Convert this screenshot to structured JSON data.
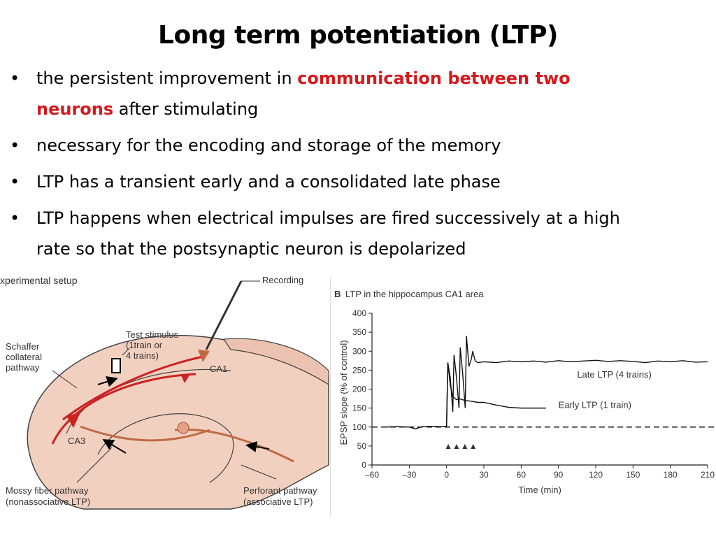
{
  "slide": {
    "title": "Long term potentiation (LTP)",
    "bullets": [
      {
        "pre": "the persistent improvement in ",
        "highlight_a": "communication between two",
        "highlight_b": "neurons",
        "post": " after stimulating"
      },
      {
        "text": "necessary for the encoding and storage of the memory"
      },
      {
        "text": "LTP has a transient early and a consolidated late phase"
      },
      {
        "text": "LTP happens when electrical impulses are fired successively at a high"
      },
      {
        "text": "rate so that the postsynaptic neuron is depolarized"
      }
    ],
    "bullet_glyph": "•",
    "highlight_color": "#d7191c"
  },
  "diagram": {
    "panel_label": "xperimental setup",
    "labels": {
      "recording": "Recording",
      "test_stimulus_1": "Test stimulus",
      "test_stimulus_2": "(1train or",
      "test_stimulus_3": "4 trains)",
      "ca1": "CA1",
      "ca3": "CA3",
      "schaffer_1": "Schaffer",
      "schaffer_2": "collateral",
      "schaffer_3": "pathway",
      "mossy_1": "Mossy fiber pathway",
      "mossy_2": "(nonassociative LTP)",
      "perforant_1": "Perforant pathway",
      "perforant_2": "(associative LTP)"
    }
  },
  "chart_data": {
    "type": "line",
    "panel_label": "B",
    "title": "LTP in the hippocampus CA1 area",
    "xlabel": "Time (min)",
    "ylabel": "EPSP slope (% of control)",
    "xlim": [
      -60,
      210
    ],
    "ylim": [
      0,
      400
    ],
    "xticks": [
      -60,
      -30,
      0,
      30,
      60,
      90,
      120,
      150,
      180,
      210
    ],
    "xtick_labels": [
      "–60",
      "–30",
      "0",
      "30",
      "60",
      "90",
      "120",
      "150",
      "180",
      "210"
    ],
    "yticks": [
      0,
      50,
      100,
      150,
      200,
      250,
      300,
      350,
      400
    ],
    "baseline": 100,
    "stimulus_marker": "▲▲▲▲",
    "stimulus_times": [
      0,
      5,
      10,
      15
    ],
    "series": [
      {
        "name": "Late LTP (4 trains)",
        "x": [
          -50,
          -40,
          -30,
          -25,
          -20,
          -10,
          -5,
          0,
          1,
          3,
          5,
          6,
          8,
          10,
          11,
          13,
          15,
          16,
          18,
          20,
          21,
          23,
          25,
          30,
          40,
          50,
          60,
          70,
          80,
          90,
          100,
          110,
          120,
          130,
          140,
          150,
          160,
          170,
          180,
          190,
          200,
          210
        ],
        "y": [
          100,
          101,
          100,
          95,
          101,
          102,
          101,
          102,
          270,
          230,
          140,
          290,
          230,
          150,
          310,
          240,
          150,
          340,
          260,
          280,
          300,
          275,
          270,
          272,
          270,
          274,
          272,
          274,
          271,
          275,
          272,
          274,
          276,
          273,
          275,
          273,
          270,
          274,
          272,
          275,
          271,
          272
        ]
      },
      {
        "name": "Early LTP (1 train)",
        "x": [
          0,
          1,
          3,
          5,
          8,
          10,
          15,
          20,
          25,
          30,
          40,
          50,
          60,
          70,
          80
        ],
        "y": [
          102,
          270,
          210,
          180,
          172,
          175,
          170,
          168,
          165,
          165,
          158,
          152,
          150,
          150,
          150
        ]
      }
    ]
  }
}
